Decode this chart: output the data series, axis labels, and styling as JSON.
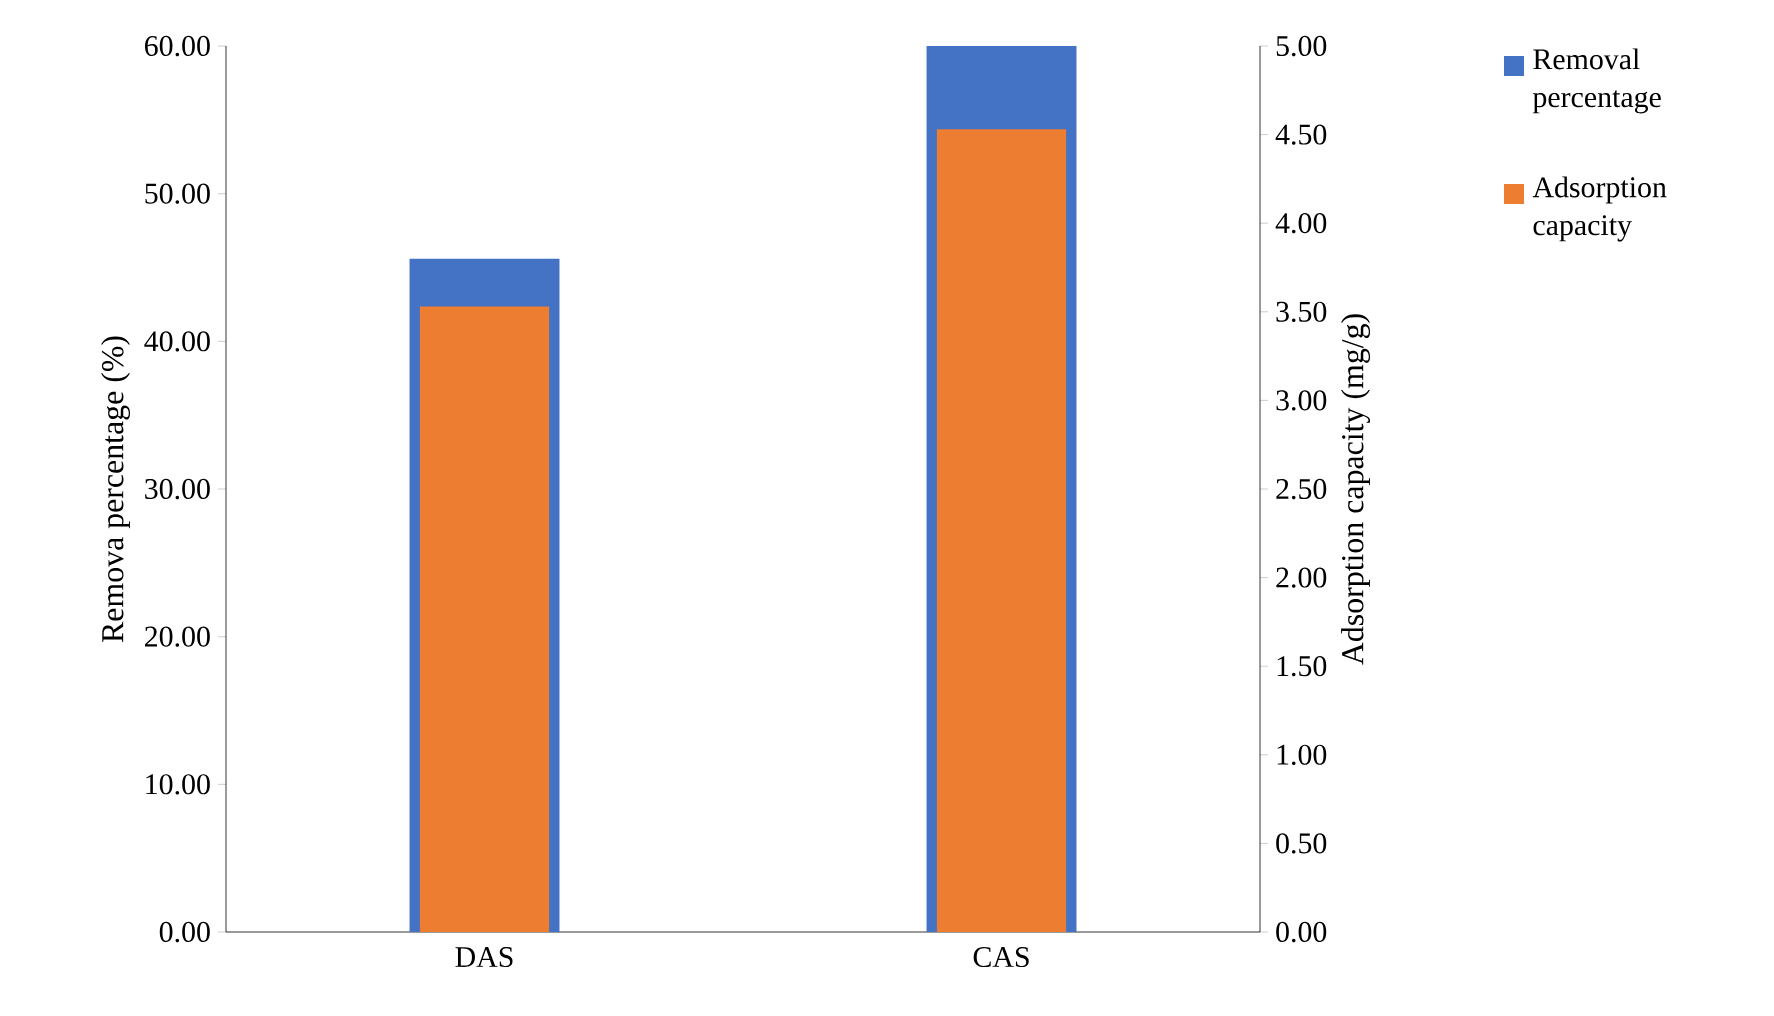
{
  "chart_data": {
    "type": "bar",
    "categories": [
      "DAS",
      "CAS"
    ],
    "series": [
      {
        "name": "Removal percentage",
        "color": "#4472c4",
        "values": [
          45.6,
          60.0
        ]
      },
      {
        "name": "Adsorption capacity",
        "color": "#ed7d31",
        "values": [
          3.53,
          4.53
        ],
        "axis": "y2"
      }
    ],
    "ylabel": "Remova percentage (%)",
    "y2label": "Adsorption capacity (mg/g)",
    "ylim": [
      0,
      60
    ],
    "yticks": [
      {
        "value": 0,
        "label": "0.00"
      },
      {
        "value": 10,
        "label": "10.00"
      },
      {
        "value": 20,
        "label": "20.00"
      },
      {
        "value": 30,
        "label": "30.00"
      },
      {
        "value": 40,
        "label": "40.00"
      },
      {
        "value": 50,
        "label": "50.00"
      },
      {
        "value": 60,
        "label": "60.00"
      }
    ],
    "y2lim": [
      0,
      5
    ],
    "y2ticks": [
      {
        "value": 0,
        "label": "0.00"
      },
      {
        "value": 0.5,
        "label": "0.50"
      },
      {
        "value": 1,
        "label": "1.00"
      },
      {
        "value": 1.5,
        "label": "1.50"
      },
      {
        "value": 2,
        "label": "2.00"
      },
      {
        "value": 2.5,
        "label": "2.50"
      },
      {
        "value": 3,
        "label": "3.00"
      },
      {
        "value": 3.5,
        "label": "3.50"
      },
      {
        "value": 4,
        "label": "4.00"
      },
      {
        "value": 4.5,
        "label": "4.50"
      },
      {
        "value": 5,
        "label": "5.00"
      }
    ],
    "legend": "right",
    "grid": false
  }
}
